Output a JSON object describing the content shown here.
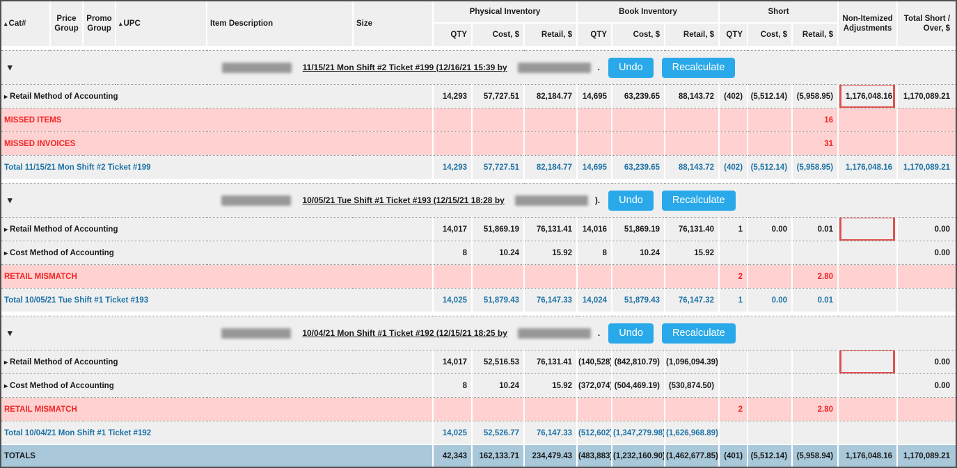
{
  "header": {
    "leading": [
      {
        "label": "Cat#",
        "sortable": true
      },
      {
        "label": "Price Group",
        "sortable": false
      },
      {
        "label": "Promo Group",
        "sortable": false
      },
      {
        "label": "UPC",
        "sortable": true
      },
      {
        "label": "Item Description",
        "sortable": false
      },
      {
        "label": "Size",
        "sortable": false
      }
    ],
    "groups": [
      {
        "label": "Physical Inventory",
        "cols": [
          "QTY",
          "Cost, $",
          "Retail, $"
        ]
      },
      {
        "label": "Book Inventory",
        "cols": [
          "QTY",
          "Cost, $",
          "Retail, $"
        ]
      },
      {
        "label": "Short",
        "cols": [
          "QTY",
          "Cost, $",
          "Retail, $"
        ]
      }
    ],
    "adjustments": "Non-Itemized Adjustments",
    "total_short_over": "Total Short / Over, $",
    "sort_icon": "▴"
  },
  "buttons": {
    "undo": "Undo",
    "recalculate": "Recalculate"
  },
  "icons": {
    "collapse": "▾",
    "expand": "▸"
  },
  "colors": {
    "button_blue": "#29a9e9",
    "row_gray": "#efefef",
    "alert_pink": "#ffd1d1",
    "alert_red": "#f42525",
    "total_blue_text": "#1d73a7",
    "totals_row_blue": "#a9c9da",
    "highlight_box_red": "#dd524e"
  },
  "sections": [
    {
      "ticket_title": "11/15/21 Mon Shift #2 Ticket #199 (12/16/21 15:39 by",
      "suffix": ".",
      "rows": [
        {
          "label": "Retail Method of Accounting",
          "type": "method",
          "expandable": true,
          "adj_boxed": true,
          "cells": [
            "14,293",
            "57,727.51",
            "82,184.77",
            "14,695",
            "63,239.65",
            "88,143.72",
            "(402)",
            "(5,512.14)",
            "(5,958.95)",
            "1,176,048.16",
            "1,170,089.21"
          ]
        },
        {
          "label": "MISSED ITEMS",
          "type": "alert",
          "expandable": false,
          "adj_boxed": false,
          "cells": [
            "",
            "",
            "",
            "",
            "",
            "",
            "",
            "",
            "16",
            "",
            ""
          ]
        },
        {
          "label": "MISSED INVOICES",
          "type": "alert",
          "expandable": false,
          "adj_boxed": false,
          "cells": [
            "",
            "",
            "",
            "",
            "",
            "",
            "",
            "",
            "31",
            "",
            ""
          ]
        },
        {
          "label": "Total 11/15/21 Mon Shift #2 Ticket #199",
          "type": "total",
          "expandable": false,
          "adj_boxed": false,
          "cells": [
            "14,293",
            "57,727.51",
            "82,184.77",
            "14,695",
            "63,239.65",
            "88,143.72",
            "(402)",
            "(5,512.14)",
            "(5,958.95)",
            "1,176,048.16",
            "1,170,089.21"
          ]
        }
      ]
    },
    {
      "ticket_title": "10/05/21 Tue Shift #1 Ticket #193 (12/15/21 18:28 by",
      "suffix": ").",
      "rows": [
        {
          "label": "Retail Method of Accounting",
          "type": "method",
          "expandable": true,
          "adj_boxed": true,
          "cells": [
            "14,017",
            "51,869.19",
            "76,131.41",
            "14,016",
            "51,869.19",
            "76,131.40",
            "1",
            "0.00",
            "0.01",
            "",
            "0.00"
          ]
        },
        {
          "label": "Cost Method of Accounting",
          "type": "method",
          "expandable": true,
          "adj_boxed": false,
          "cells": [
            "8",
            "10.24",
            "15.92",
            "8",
            "10.24",
            "15.92",
            "",
            "",
            "",
            "",
            "0.00"
          ]
        },
        {
          "label": "RETAIL MISMATCH",
          "type": "alert",
          "expandable": false,
          "adj_boxed": false,
          "cells": [
            "",
            "",
            "",
            "",
            "",
            "",
            "2",
            "",
            "2.80",
            "",
            ""
          ]
        },
        {
          "label": "Total 10/05/21 Tue Shift #1 Ticket #193",
          "type": "total",
          "expandable": false,
          "adj_boxed": false,
          "cells": [
            "14,025",
            "51,879.43",
            "76,147.33",
            "14,024",
            "51,879.43",
            "76,147.32",
            "1",
            "0.00",
            "0.01",
            "",
            ""
          ]
        }
      ]
    },
    {
      "ticket_title": "10/04/21 Mon Shift #1 Ticket #192 (12/15/21 18:25 by",
      "suffix": ".",
      "rows": [
        {
          "label": "Retail Method of Accounting",
          "type": "method",
          "expandable": true,
          "adj_boxed": true,
          "cells": [
            "14,017",
            "52,516.53",
            "76,131.41",
            "(140,528)",
            "(842,810.79)",
            "(1,096,094.39)",
            "",
            "",
            "",
            "",
            "0.00"
          ]
        },
        {
          "label": "Cost Method of Accounting",
          "type": "method",
          "expandable": true,
          "adj_boxed": false,
          "cells": [
            "8",
            "10.24",
            "15.92",
            "(372,074)",
            "(504,469.19)",
            "(530,874.50)",
            "",
            "",
            "",
            "",
            "0.00"
          ]
        },
        {
          "label": "RETAIL MISMATCH",
          "type": "alert",
          "expandable": false,
          "adj_boxed": false,
          "cells": [
            "",
            "",
            "",
            "",
            "",
            "",
            "2",
            "",
            "2.80",
            "",
            ""
          ]
        },
        {
          "label": "Total 10/04/21 Mon Shift #1 Ticket #192",
          "type": "total",
          "expandable": false,
          "adj_boxed": false,
          "cells": [
            "14,025",
            "52,526.77",
            "76,147.33",
            "(512,602)",
            "(1,347,279.98)",
            "(1,626,968.89)",
            "",
            "",
            "",
            "",
            ""
          ]
        }
      ]
    }
  ],
  "totals": {
    "label": "TOTALS",
    "cells": [
      "42,343",
      "162,133.71",
      "234,479.43",
      "(483,883)",
      "(1,232,160.90)",
      "(1,462,677.85)",
      "(401)",
      "(5,512.14)",
      "(5,958.94)",
      "1,176,048.16",
      "1,170,089.21"
    ]
  }
}
